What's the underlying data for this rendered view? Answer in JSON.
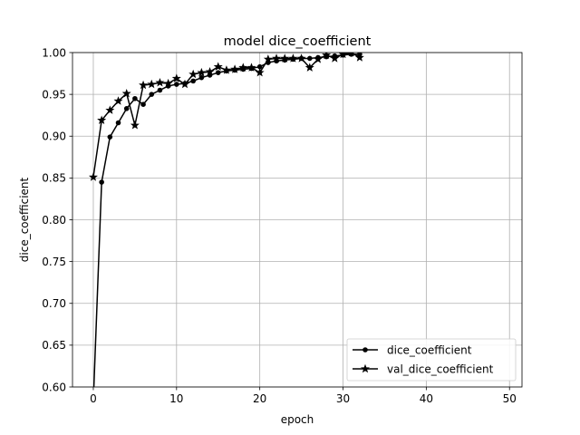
{
  "chart_data": {
    "type": "line",
    "title": "model dice_coefficient",
    "xlabel": "epoch",
    "ylabel": "dice_coefficient",
    "xlim": [
      -2.5,
      51.5
    ],
    "ylim": [
      0.6,
      1.0
    ],
    "xticks": [
      0,
      10,
      20,
      30,
      40,
      50
    ],
    "yticks": [
      0.6,
      0.65,
      0.7,
      0.75,
      0.8,
      0.85,
      0.9,
      0.95,
      1.0
    ],
    "grid": true,
    "legend_position": "lower-right",
    "x": [
      0,
      1,
      2,
      3,
      4,
      5,
      6,
      7,
      8,
      9,
      10,
      11,
      12,
      13,
      14,
      15,
      16,
      17,
      18,
      19,
      20,
      21,
      22,
      23,
      24,
      25,
      26,
      27,
      28,
      29,
      30,
      31,
      32
    ],
    "series": [
      {
        "name": "dice_coefficient",
        "marker": "circle",
        "color": "#000000",
        "values": [
          0.582,
          0.845,
          0.899,
          0.916,
          0.933,
          0.945,
          0.938,
          0.95,
          0.955,
          0.96,
          0.962,
          0.963,
          0.966,
          0.97,
          0.973,
          0.976,
          0.978,
          0.979,
          0.98,
          0.981,
          0.983,
          0.988,
          0.99,
          0.991,
          0.992,
          0.993,
          0.993,
          0.994,
          0.995,
          0.996,
          0.997,
          0.998,
          0.998
        ]
      },
      {
        "name": "val_dice_coefficient",
        "marker": "star",
        "color": "#000000",
        "values": [
          0.851,
          0.919,
          0.931,
          0.942,
          0.951,
          0.913,
          0.961,
          0.962,
          0.964,
          0.963,
          0.969,
          0.962,
          0.974,
          0.976,
          0.977,
          0.983,
          0.979,
          0.98,
          0.982,
          0.982,
          0.976,
          0.992,
          0.993,
          0.993,
          0.993,
          0.993,
          0.982,
          0.992,
          0.997,
          0.993,
          0.998,
          1.0,
          0.994
        ]
      }
    ]
  }
}
